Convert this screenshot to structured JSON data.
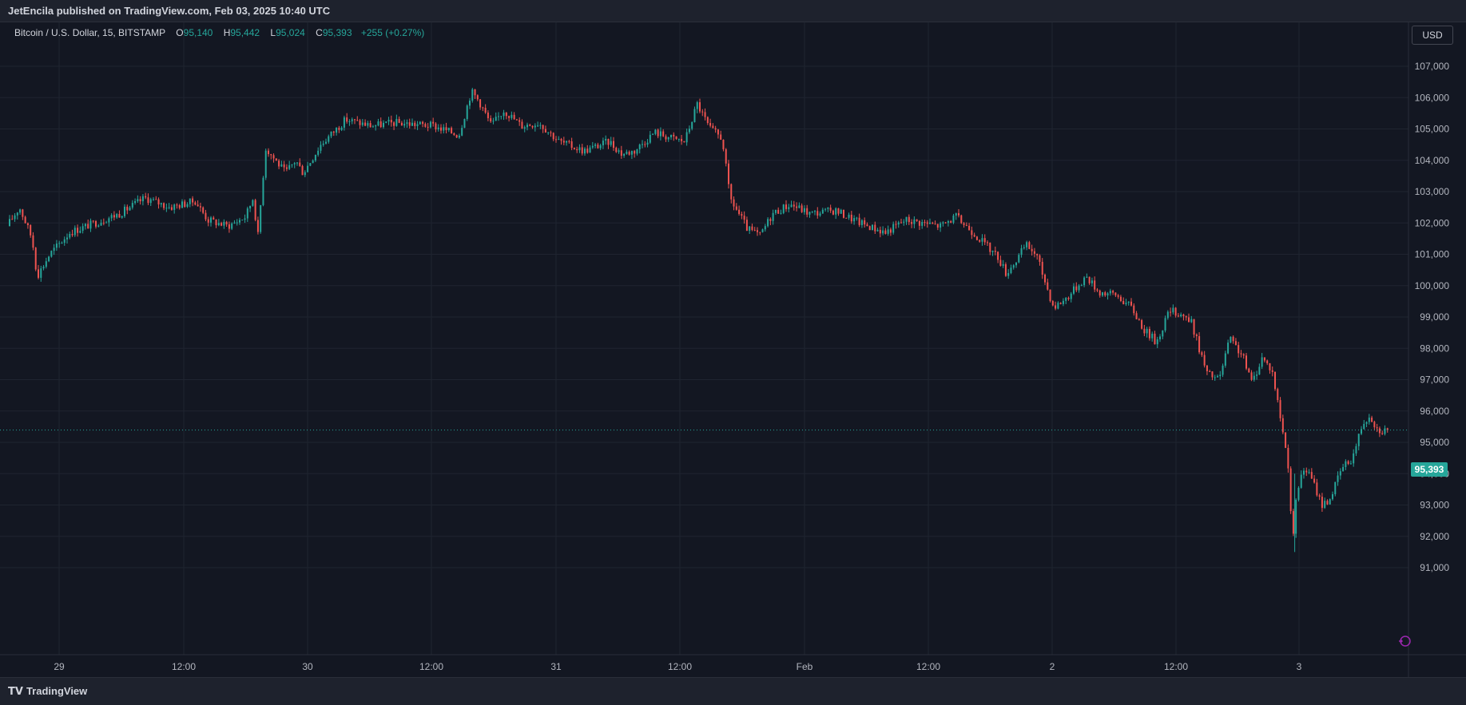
{
  "header": {
    "published_text": "JetEncila published on TradingView.com, Feb 03, 2025 10:40 UTC"
  },
  "legend": {
    "symbol": "Bitcoin / U.S. Dollar, 15, BITSTAMP",
    "open_label": "O",
    "open_value": "95,140",
    "high_label": "H",
    "high_value": "95,442",
    "low_label": "L",
    "low_value": "95,024",
    "close_label": "C",
    "close_value": "95,393",
    "change": "+255 (+0.27%)"
  },
  "currency_button": "USD",
  "last_price_tag": "95,393",
  "footer": {
    "logo_mark": "𝗧𝗩",
    "brand": "TradingView"
  },
  "colors": {
    "up": "#26a69a",
    "down": "#ef5350",
    "background": "#131722",
    "grid": "#1f2430"
  },
  "chart_data": {
    "type": "candlestick",
    "y_ticks": [
      "107,000",
      "106,000",
      "105,000",
      "104,000",
      "103,000",
      "102,000",
      "101,000",
      "100,000",
      "99,000",
      "98,000",
      "97,000",
      "96,000",
      "95,000",
      "94,000",
      "93,000",
      "92,000",
      "91,000"
    ],
    "ylim": [
      90000,
      107600
    ],
    "x_ticks": [
      "29",
      "12:00",
      "30",
      "12:00",
      "31",
      "12:00",
      "Feb",
      "12:00",
      "2",
      "12:00",
      "3"
    ],
    "x_range_days": [
      0,
      5.57
    ],
    "x_tick_positions_days": [
      0.5,
      1.0,
      1.5,
      2.0,
      2.5,
      3.0,
      3.5,
      4.0,
      4.5,
      5.0,
      5.5
    ],
    "last_price": 95393,
    "series_keypoints": [
      [
        0.0,
        101900
      ],
      [
        0.05,
        102500
      ],
      [
        0.1,
        101500
      ],
      [
        0.12,
        100300
      ],
      [
        0.17,
        101000
      ],
      [
        0.25,
        101700
      ],
      [
        0.35,
        102000
      ],
      [
        0.45,
        102300
      ],
      [
        0.55,
        102800
      ],
      [
        0.65,
        102500
      ],
      [
        0.75,
        102700
      ],
      [
        0.8,
        102100
      ],
      [
        0.88,
        101900
      ],
      [
        0.95,
        102200
      ],
      [
        0.98,
        102800
      ],
      [
        1.0,
        101600
      ],
      [
        1.03,
        104400
      ],
      [
        1.08,
        103900
      ],
      [
        1.11,
        103600
      ],
      [
        1.15,
        104000
      ],
      [
        1.18,
        103600
      ],
      [
        1.25,
        104500
      ],
      [
        1.35,
        105300
      ],
      [
        1.45,
        105100
      ],
      [
        1.55,
        105200
      ],
      [
        1.7,
        105100
      ],
      [
        1.8,
        104800
      ],
      [
        1.85,
        106200
      ],
      [
        1.88,
        105900
      ],
      [
        1.93,
        105100
      ],
      [
        1.98,
        105600
      ],
      [
        2.05,
        105100
      ],
      [
        2.12,
        105200
      ],
      [
        2.2,
        104600
      ],
      [
        2.3,
        104300
      ],
      [
        2.4,
        104600
      ],
      [
        2.45,
        104200
      ],
      [
        2.5,
        104300
      ],
      [
        2.58,
        104900
      ],
      [
        2.65,
        104700
      ],
      [
        2.7,
        104600
      ],
      [
        2.75,
        105800
      ],
      [
        2.8,
        105000
      ],
      [
        2.85,
        104700
      ],
      [
        2.88,
        102800
      ],
      [
        2.95,
        101800
      ],
      [
        3.0,
        101600
      ],
      [
        3.05,
        102300
      ],
      [
        3.12,
        102600
      ],
      [
        3.2,
        102300
      ],
      [
        3.3,
        102400
      ],
      [
        3.4,
        102000
      ],
      [
        3.5,
        101700
      ],
      [
        3.58,
        102100
      ],
      [
        3.65,
        102000
      ],
      [
        3.72,
        101900
      ],
      [
        3.78,
        102200
      ],
      [
        3.85,
        101700
      ],
      [
        3.9,
        101300
      ],
      [
        3.95,
        100900
      ],
      [
        3.98,
        100400
      ],
      [
        4.02,
        100800
      ],
      [
        4.06,
        101300
      ],
      [
        4.1,
        101000
      ],
      [
        4.17,
        99300
      ],
      [
        4.22,
        99600
      ],
      [
        4.3,
        100300
      ],
      [
        4.35,
        99800
      ],
      [
        4.42,
        99700
      ],
      [
        4.48,
        99300
      ],
      [
        4.53,
        98600
      ],
      [
        4.58,
        98200
      ],
      [
        4.63,
        99200
      ],
      [
        4.68,
        99100
      ],
      [
        4.72,
        98800
      ],
      [
        4.78,
        97200
      ],
      [
        4.83,
        97000
      ],
      [
        4.87,
        98300
      ],
      [
        4.92,
        97800
      ],
      [
        4.96,
        96900
      ],
      [
        5.0,
        97700
      ],
      [
        5.04,
        97300
      ],
      [
        5.08,
        95500
      ],
      [
        5.11,
        94000
      ],
      [
        5.12,
        91500
      ],
      [
        5.14,
        93500
      ],
      [
        5.17,
        94200
      ],
      [
        5.2,
        93800
      ],
      [
        5.24,
        93000
      ],
      [
        5.27,
        93200
      ],
      [
        5.32,
        94200
      ],
      [
        5.36,
        94500
      ],
      [
        5.4,
        95600
      ],
      [
        5.43,
        95900
      ],
      [
        5.46,
        95400
      ],
      [
        5.49,
        95393
      ]
    ]
  }
}
